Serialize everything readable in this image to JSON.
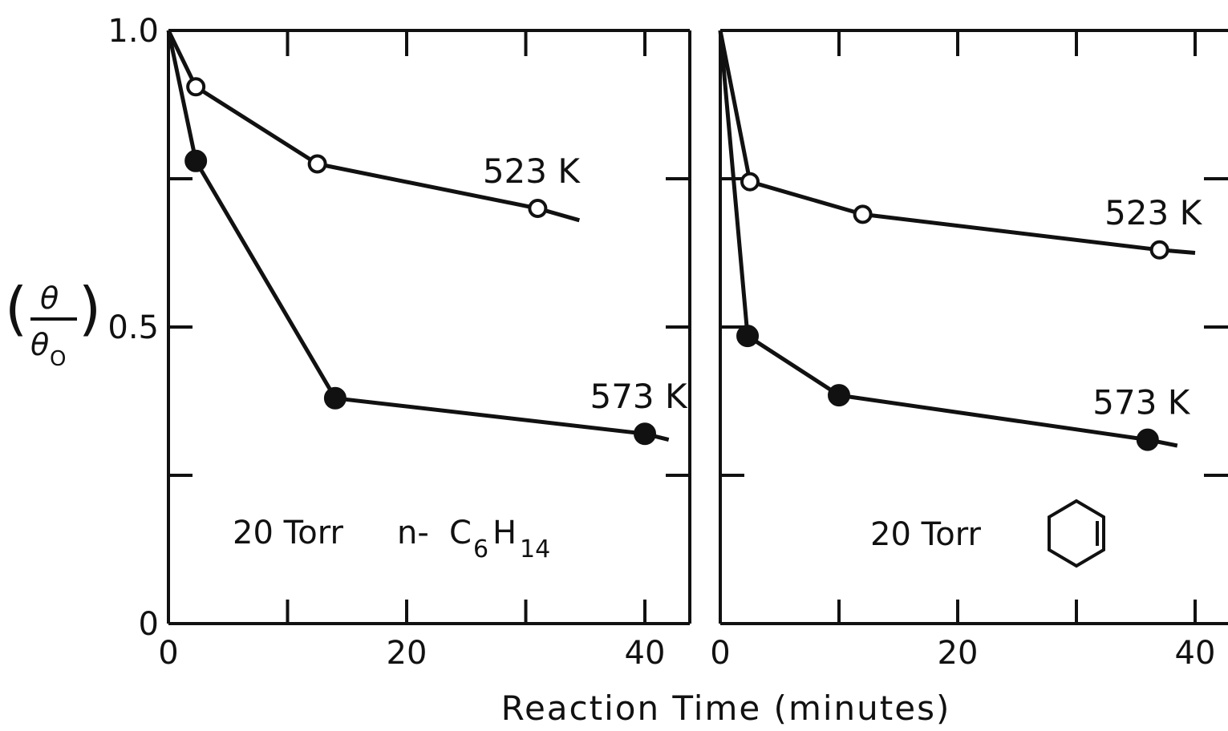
{
  "colors": {
    "ink": "#111111",
    "background": "#ffffff"
  },
  "ylabel": {
    "num": "θ",
    "den": "θ",
    "sub": "O",
    "tick_mid": "0.5"
  },
  "xlabel": "Reaction Time (minutes)",
  "chart_data": [
    {
      "type": "line",
      "panel": "left",
      "condition": {
        "pressure": "20 Torr",
        "prefix": "n-",
        "c": "C",
        "c_sub": "6",
        "h": "H",
        "h_sub": "14"
      },
      "xlim": [
        0,
        43
      ],
      "ylim": [
        0,
        1.0
      ],
      "xticks": [
        0,
        10,
        20,
        30,
        40
      ],
      "xtick_labels": [
        "0",
        "",
        "20",
        "",
        "40"
      ],
      "yticks": [
        0,
        0.25,
        0.5,
        0.75,
        1.0
      ],
      "ytick_labels": [
        "0",
        "",
        "0.5",
        "",
        "1.0"
      ],
      "grid": false,
      "series": [
        {
          "name": "523 K",
          "marker": "open-circle",
          "x": [
            0,
            2.3,
            12.5,
            31,
            34.5
          ],
          "y": [
            1.0,
            0.905,
            0.775,
            0.7,
            0.68
          ],
          "show_marker": [
            false,
            true,
            true,
            true,
            false
          ]
        },
        {
          "name": "573 K",
          "marker": "filled-circle",
          "x": [
            0,
            2.3,
            14,
            40,
            42
          ],
          "y": [
            1.0,
            0.78,
            0.38,
            0.32,
            0.31
          ],
          "show_marker": [
            false,
            true,
            true,
            true,
            false
          ]
        }
      ]
    },
    {
      "type": "line",
      "panel": "right",
      "condition": {
        "pressure": "20 Torr",
        "molecule_icon": "cyclohexene-ring-icon"
      },
      "xlim": [
        0,
        43
      ],
      "ylim": [
        0,
        1.0
      ],
      "xticks": [
        0,
        10,
        20,
        30,
        40
      ],
      "xtick_labels": [
        "0",
        "",
        "20",
        "",
        "40"
      ],
      "yticks": [
        0,
        0.25,
        0.5,
        0.75,
        1.0
      ],
      "ytick_labels": [
        "",
        "",
        "",
        "",
        ""
      ],
      "grid": false,
      "series": [
        {
          "name": "523 K",
          "marker": "open-circle",
          "x": [
            0,
            2.5,
            12,
            37,
            40
          ],
          "y": [
            1.0,
            0.745,
            0.69,
            0.63,
            0.625
          ],
          "show_marker": [
            false,
            true,
            true,
            true,
            false
          ]
        },
        {
          "name": "573 K",
          "marker": "filled-circle",
          "x": [
            0,
            2.3,
            10,
            36,
            38.5
          ],
          "y": [
            1.0,
            0.485,
            0.385,
            0.31,
            0.3
          ],
          "show_marker": [
            false,
            true,
            true,
            true,
            false
          ]
        }
      ]
    }
  ]
}
